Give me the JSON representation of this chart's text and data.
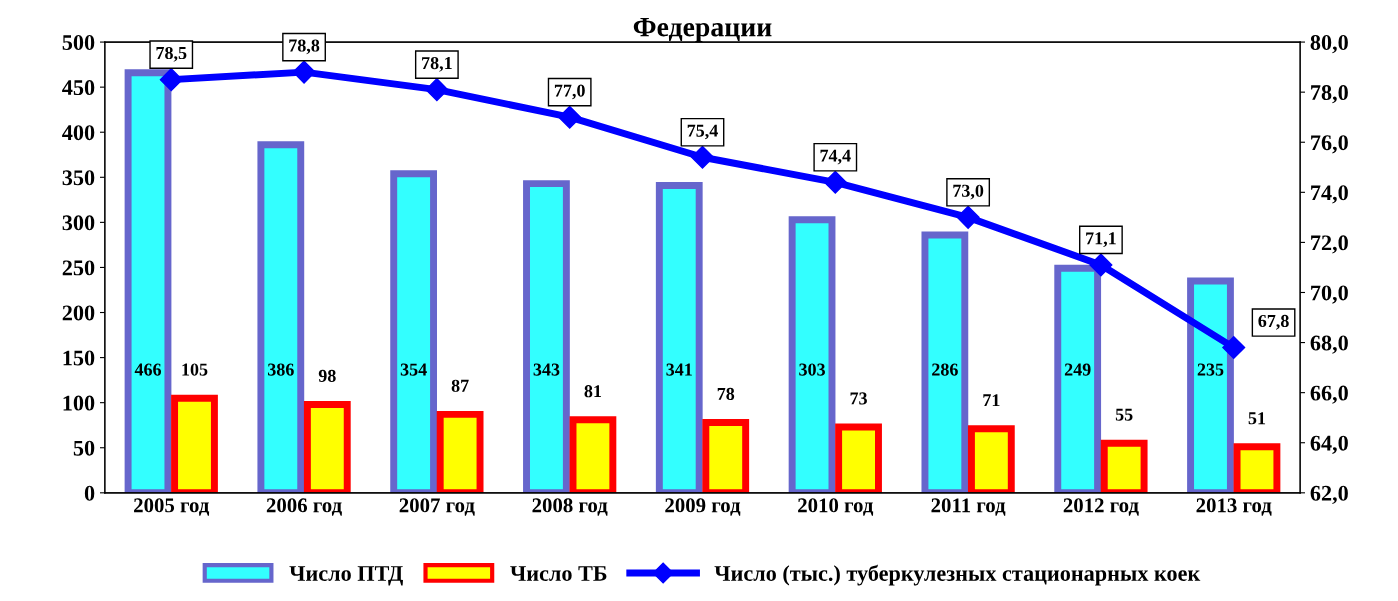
{
  "chart_data": {
    "type": "bar",
    "title": "Федерации",
    "categories": [
      "2005 год",
      "2006 год",
      "2007 год",
      "2008 год",
      "2009 год",
      "2010 год",
      "2011 год",
      "2012 год",
      "2013 год"
    ],
    "series": [
      {
        "name": "Число ПТД",
        "color": "#33ffff",
        "values": [
          466,
          386,
          354,
          343,
          341,
          303,
          286,
          249,
          235
        ]
      },
      {
        "name": "Число ТБ",
        "color": "#ffff00",
        "values": [
          105,
          98,
          87,
          81,
          78,
          73,
          71,
          55,
          51
        ]
      },
      {
        "name": "Число (тыс.) туберкулезных стационарных коек",
        "type": "line",
        "axis": "y2",
        "color": "#0000ff",
        "marker": "diamond",
        "values": [
          78.5,
          78.8,
          78.1,
          77.0,
          75.4,
          74.4,
          73.0,
          71.1,
          67.8
        ],
        "value_labels": [
          "78,5",
          "78,8",
          "78,1",
          "77,0",
          "75,4",
          "74,4",
          "73,0",
          "71,1",
          "67,8"
        ]
      }
    ],
    "ylim": [
      0,
      500
    ],
    "yticks": [
      0,
      50,
      100,
      150,
      200,
      250,
      300,
      350,
      400,
      450,
      500
    ],
    "y2lim": [
      62,
      80
    ],
    "y2ticks": [
      {
        "value": 62,
        "label": "62,0"
      },
      {
        "value": 64,
        "label": "64,0"
      },
      {
        "value": 66,
        "label": "66,0"
      },
      {
        "value": 68,
        "label": "68,0"
      },
      {
        "value": 70,
        "label": "70,0"
      },
      {
        "value": 72,
        "label": "72,0"
      },
      {
        "value": 74,
        "label": "74,0"
      },
      {
        "value": 76,
        "label": "76,0"
      },
      {
        "value": 78,
        "label": "78,0"
      },
      {
        "value": 80,
        "label": "80,0"
      }
    ],
    "data_labels": true,
    "legend": "bottom",
    "grid": false
  }
}
